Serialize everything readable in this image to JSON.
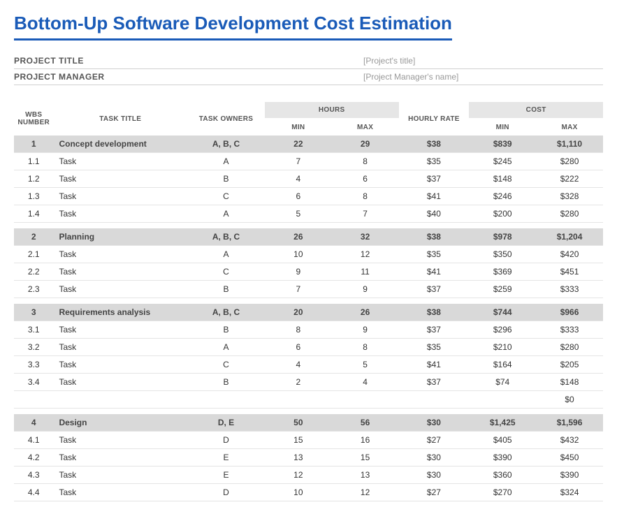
{
  "title": "Bottom-Up Software Development Cost Estimation",
  "meta": {
    "project_title_label": "PROJECT TITLE",
    "project_title_value": "[Project's title]",
    "project_manager_label": "PROJECT MANAGER",
    "project_manager_value": "[Project Manager's name]"
  },
  "headers": {
    "wbs": "WBS NUMBER",
    "task_title": "TASK TITLE",
    "task_owners": "TASK OWNERS",
    "hours": "HOURS",
    "min": "MIN",
    "max": "MAX",
    "rate": "HOURLY RATE",
    "cost": "COST"
  },
  "sections": [
    {
      "summary": {
        "wbs": "1",
        "title": "Concept development",
        "owners": "A, B, C",
        "hmin": "22",
        "hmax": "29",
        "rate": "$38",
        "cmin": "$839",
        "cmax": "$1,110"
      },
      "rows": [
        {
          "wbs": "1.1",
          "title": "Task",
          "owners": "A",
          "hmin": "7",
          "hmax": "8",
          "rate": "$35",
          "cmin": "$245",
          "cmax": "$280"
        },
        {
          "wbs": "1.2",
          "title": "Task",
          "owners": "B",
          "hmin": "4",
          "hmax": "6",
          "rate": "$37",
          "cmin": "$148",
          "cmax": "$222"
        },
        {
          "wbs": "1.3",
          "title": "Task",
          "owners": "C",
          "hmin": "6",
          "hmax": "8",
          "rate": "$41",
          "cmin": "$246",
          "cmax": "$328"
        },
        {
          "wbs": "1.4",
          "title": "Task",
          "owners": "A",
          "hmin": "5",
          "hmax": "7",
          "rate": "$40",
          "cmin": "$200",
          "cmax": "$280"
        }
      ],
      "trailing_extra": null
    },
    {
      "summary": {
        "wbs": "2",
        "title": "Planning",
        "owners": "A, B, C",
        "hmin": "26",
        "hmax": "32",
        "rate": "$38",
        "cmin": "$978",
        "cmax": "$1,204"
      },
      "rows": [
        {
          "wbs": "2.1",
          "title": "Task",
          "owners": "A",
          "hmin": "10",
          "hmax": "12",
          "rate": "$35",
          "cmin": "$350",
          "cmax": "$420"
        },
        {
          "wbs": "2.2",
          "title": "Task",
          "owners": "C",
          "hmin": "9",
          "hmax": "11",
          "rate": "$41",
          "cmin": "$369",
          "cmax": "$451"
        },
        {
          "wbs": "2.3",
          "title": "Task",
          "owners": "B",
          "hmin": "7",
          "hmax": "9",
          "rate": "$37",
          "cmin": "$259",
          "cmax": "$333"
        }
      ],
      "trailing_extra": null
    },
    {
      "summary": {
        "wbs": "3",
        "title": "Requirements analysis",
        "owners": "A, B, C",
        "hmin": "20",
        "hmax": "26",
        "rate": "$38",
        "cmin": "$744",
        "cmax": "$966"
      },
      "rows": [
        {
          "wbs": "3.1",
          "title": "Task",
          "owners": "B",
          "hmin": "8",
          "hmax": "9",
          "rate": "$37",
          "cmin": "$296",
          "cmax": "$333"
        },
        {
          "wbs": "3.2",
          "title": "Task",
          "owners": "A",
          "hmin": "6",
          "hmax": "8",
          "rate": "$35",
          "cmin": "$210",
          "cmax": "$280"
        },
        {
          "wbs": "3.3",
          "title": "Task",
          "owners": "C",
          "hmin": "4",
          "hmax": "5",
          "rate": "$41",
          "cmin": "$164",
          "cmax": "$205"
        },
        {
          "wbs": "3.4",
          "title": "Task",
          "owners": "B",
          "hmin": "2",
          "hmax": "4",
          "rate": "$37",
          "cmin": "$74",
          "cmax": "$148"
        }
      ],
      "trailing_extra": "$0"
    },
    {
      "summary": {
        "wbs": "4",
        "title": "Design",
        "owners": "D, E",
        "hmin": "50",
        "hmax": "56",
        "rate": "$30",
        "cmin": "$1,425",
        "cmax": "$1,596"
      },
      "rows": [
        {
          "wbs": "4.1",
          "title": "Task",
          "owners": "D",
          "hmin": "15",
          "hmax": "16",
          "rate": "$27",
          "cmin": "$405",
          "cmax": "$432"
        },
        {
          "wbs": "4.2",
          "title": "Task",
          "owners": "E",
          "hmin": "13",
          "hmax": "15",
          "rate": "$30",
          "cmin": "$390",
          "cmax": "$450"
        },
        {
          "wbs": "4.3",
          "title": "Task",
          "owners": "E",
          "hmin": "12",
          "hmax": "13",
          "rate": "$30",
          "cmin": "$360",
          "cmax": "$390"
        },
        {
          "wbs": "4.4",
          "title": "Task",
          "owners": "D",
          "hmin": "10",
          "hmax": "12",
          "rate": "$27",
          "cmin": "$270",
          "cmax": "$324"
        }
      ],
      "trailing_extra": null
    }
  ],
  "colors": {
    "title": "#1a5bb8",
    "header_bg": "#e6e6e6",
    "summary_bg": "#d9d9d9",
    "row_border": "#e4e4e4",
    "meta_value": "#999999",
    "text": "#333333"
  },
  "typography": {
    "title_fontsize_pt": 20,
    "body_fontsize_pt": 9,
    "header_fontsize_pt": 7.5,
    "font_family": "Arial"
  }
}
